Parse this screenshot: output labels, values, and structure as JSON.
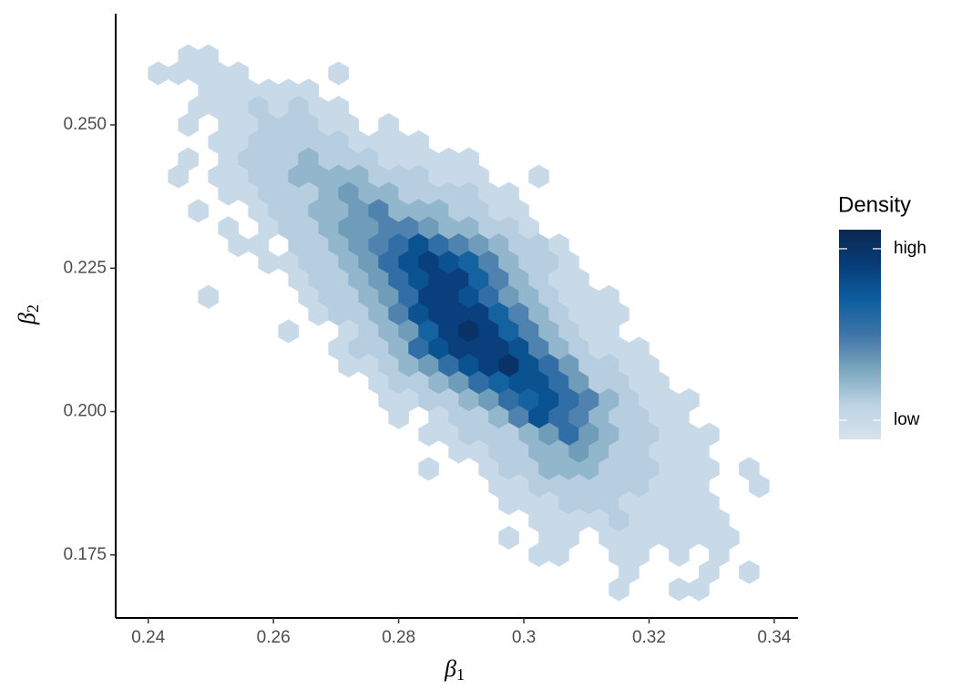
{
  "chart_data": {
    "type": "hexbin",
    "xlabel": "β",
    "xlabel_sub": "1",
    "ylabel": "β",
    "ylabel_sub": "2",
    "xlim": [
      0.2348,
      0.3438
    ],
    "ylim": [
      0.164,
      0.2694
    ],
    "xticks": [
      0.24,
      0.26,
      0.28,
      0.3,
      0.32,
      0.34
    ],
    "yticks": [
      {
        "value": 0.175,
        "label": "0.175"
      },
      {
        "value": 0.2,
        "label": "0.200"
      },
      {
        "value": 0.225,
        "label": "0.225"
      },
      {
        "value": 0.25,
        "label": "0.250"
      }
    ],
    "hex_width": 0.0032,
    "legend_title": "Density",
    "clim": [
      0,
      11
    ],
    "cticks": [
      {
        "value": 10,
        "label": "high"
      },
      {
        "value": 1,
        "label": "low"
      }
    ],
    "colors": [
      "#d6e3ed",
      "#bcd2e3",
      "#7aa6bd",
      "#3f74a8",
      "#0c5ea0",
      "#083c78",
      "#0a2850"
    ],
    "rows": [
      {
        "y": 0.262,
        "x": [
          0.2464,
          0.2496
        ],
        "values": [
          1,
          1
        ]
      },
      {
        "y": 0.259,
        "x": [
          0.2416,
          0.2448,
          0.248,
          0.2512,
          0.2544,
          0.2704
        ],
        "values": [
          1,
          1,
          1,
          1,
          1,
          1
        ]
      },
      {
        "y": 0.256,
        "x": [
          0.2496,
          0.2528,
          0.256,
          0.2592,
          0.2624,
          0.2656
        ],
        "values": [
          1,
          1,
          1,
          1,
          1,
          1
        ]
      },
      {
        "y": 0.253,
        "x": [
          0.248,
          0.2512,
          0.2544,
          0.2576,
          0.2608,
          0.264,
          0.2672,
          0.2704
        ],
        "values": [
          1,
          1,
          1,
          2,
          1,
          2,
          1,
          1
        ]
      },
      {
        "y": 0.25,
        "x": [
          0.2464,
          0.2528,
          0.256,
          0.2592,
          0.2624,
          0.2656,
          0.2688,
          0.272,
          0.2784
        ],
        "values": [
          1,
          1,
          1,
          2,
          2,
          2,
          1,
          1,
          1
        ]
      },
      {
        "y": 0.247,
        "x": [
          0.2512,
          0.2544,
          0.2576,
          0.2608,
          0.264,
          0.2672,
          0.2704,
          0.2736,
          0.2768,
          0.28,
          0.2832
        ],
        "values": [
          1,
          1,
          2,
          2,
          2,
          2,
          2,
          1,
          1,
          1,
          1
        ]
      },
      {
        "y": 0.244,
        "x": [
          0.2464,
          0.2528,
          0.256,
          0.2592,
          0.2624,
          0.2656,
          0.2688,
          0.272,
          0.2752,
          0.2784,
          0.2816,
          0.2848,
          0.288,
          0.2912
        ],
        "values": [
          1,
          1,
          2,
          2,
          2,
          3,
          2,
          2,
          2,
          1,
          1,
          1,
          1,
          1
        ]
      },
      {
        "y": 0.241,
        "x": [
          0.2448,
          0.2512,
          0.2544,
          0.2576,
          0.2608,
          0.264,
          0.2672,
          0.2704,
          0.2736,
          0.2768,
          0.28,
          0.2832,
          0.2864,
          0.2896,
          0.2928,
          0.3024
        ],
        "values": [
          1,
          1,
          1,
          2,
          2,
          3,
          3,
          3,
          3,
          2,
          2,
          2,
          1,
          1,
          1,
          1
        ]
      },
      {
        "y": 0.238,
        "x": [
          0.2528,
          0.256,
          0.2592,
          0.2624,
          0.2656,
          0.2688,
          0.272,
          0.2752,
          0.2784,
          0.2816,
          0.2848,
          0.288,
          0.2912,
          0.2944,
          0.2976
        ],
        "values": [
          1,
          1,
          2,
          2,
          2,
          3,
          4,
          3,
          3,
          2,
          2,
          2,
          2,
          1,
          1
        ]
      },
      {
        "y": 0.235,
        "x": [
          0.248,
          0.2576,
          0.2608,
          0.264,
          0.2672,
          0.2704,
          0.2736,
          0.2768,
          0.28,
          0.2832,
          0.2864,
          0.2896,
          0.2928,
          0.296,
          0.2992
        ],
        "values": [
          1,
          1,
          2,
          2,
          3,
          3,
          4,
          5,
          3,
          3,
          3,
          2,
          2,
          1,
          1
        ]
      },
      {
        "y": 0.232,
        "x": [
          0.2528,
          0.2592,
          0.2624,
          0.2656,
          0.2688,
          0.272,
          0.2752,
          0.2784,
          0.2816,
          0.2848,
          0.288,
          0.2912,
          0.2944,
          0.2976,
          0.3008
        ],
        "values": [
          1,
          1,
          2,
          2,
          3,
          4,
          4,
          5,
          5,
          4,
          3,
          3,
          2,
          2,
          1
        ]
      },
      {
        "y": 0.229,
        "x": [
          0.2544,
          0.2576,
          0.264,
          0.2672,
          0.2704,
          0.2736,
          0.2768,
          0.28,
          0.2832,
          0.2864,
          0.2896,
          0.2928,
          0.296,
          0.2992,
          0.3024,
          0.3056
        ],
        "values": [
          1,
          1,
          2,
          2,
          3,
          4,
          5,
          6,
          8,
          6,
          5,
          4,
          3,
          2,
          2,
          1
        ]
      },
      {
        "y": 0.226,
        "x": [
          0.2592,
          0.2624,
          0.2656,
          0.2688,
          0.272,
          0.2752,
          0.2784,
          0.2816,
          0.2848,
          0.288,
          0.2912,
          0.2944,
          0.2976,
          0.3008,
          0.304,
          0.3072
        ],
        "values": [
          1,
          1,
          2,
          2,
          3,
          4,
          6,
          8,
          9,
          8,
          7,
          5,
          3,
          2,
          2,
          1
        ]
      },
      {
        "y": 0.223,
        "x": [
          0.264,
          0.2672,
          0.2704,
          0.2736,
          0.2768,
          0.28,
          0.2832,
          0.2864,
          0.2896,
          0.2928,
          0.296,
          0.2992,
          0.3024,
          0.3056,
          0.3088
        ],
        "values": [
          1,
          2,
          2,
          3,
          4,
          6,
          8,
          9,
          9,
          7,
          5,
          3,
          2,
          1,
          1
        ]
      },
      {
        "y": 0.22,
        "x": [
          0.2496,
          0.2656,
          0.2688,
          0.272,
          0.2752,
          0.2784,
          0.2816,
          0.2848,
          0.288,
          0.2912,
          0.2944,
          0.2976,
          0.3008,
          0.304,
          0.3072,
          0.3104,
          0.3136
        ],
        "values": [
          1,
          1,
          2,
          2,
          3,
          4,
          6,
          9,
          9,
          8,
          6,
          4,
          3,
          2,
          1,
          1,
          1
        ]
      },
      {
        "y": 0.217,
        "x": [
          0.2672,
          0.2704,
          0.2736,
          0.2768,
          0.28,
          0.2832,
          0.2864,
          0.2896,
          0.2928,
          0.296,
          0.2992,
          0.3024,
          0.3056,
          0.3088,
          0.312,
          0.3152
        ],
        "values": [
          1,
          2,
          2,
          3,
          5,
          8,
          9,
          9,
          9,
          7,
          5,
          3,
          2,
          1,
          1,
          1
        ]
      },
      {
        "y": 0.214,
        "x": [
          0.2624,
          0.272,
          0.2752,
          0.2784,
          0.2816,
          0.2848,
          0.288,
          0.2912,
          0.2944,
          0.2976,
          0.3008,
          0.304,
          0.3072,
          0.3104,
          0.3136
        ],
        "values": [
          1,
          1,
          2,
          3,
          4,
          7,
          9,
          10,
          9,
          7,
          5,
          3,
          2,
          1,
          1
        ]
      },
      {
        "y": 0.211,
        "x": [
          0.2704,
          0.2736,
          0.2768,
          0.28,
          0.2832,
          0.2864,
          0.2896,
          0.2928,
          0.296,
          0.2992,
          0.3024,
          0.3056,
          0.3088,
          0.312,
          0.3152,
          0.3184
        ],
        "values": [
          1,
          2,
          2,
          3,
          6,
          8,
          9,
          9,
          9,
          8,
          5,
          3,
          2,
          1,
          1,
          1
        ]
      },
      {
        "y": 0.208,
        "x": [
          0.272,
          0.2752,
          0.2784,
          0.2816,
          0.2848,
          0.288,
          0.2912,
          0.2944,
          0.2976,
          0.3008,
          0.304,
          0.3072,
          0.3104,
          0.3136,
          0.3168,
          0.32
        ],
        "values": [
          1,
          1,
          2,
          3,
          4,
          6,
          8,
          9,
          10,
          8,
          6,
          4,
          2,
          2,
          1,
          1
        ]
      },
      {
        "y": 0.205,
        "x": [
          0.2768,
          0.28,
          0.2832,
          0.2864,
          0.2896,
          0.2928,
          0.296,
          0.2992,
          0.3024,
          0.3056,
          0.3088,
          0.312,
          0.3152,
          0.3184,
          0.3216
        ],
        "values": [
          1,
          2,
          2,
          3,
          4,
          6,
          7,
          8,
          8,
          6,
          4,
          2,
          2,
          1,
          1
        ]
      },
      {
        "y": 0.202,
        "x": [
          0.2784,
          0.2816,
          0.2848,
          0.288,
          0.2912,
          0.2944,
          0.2976,
          0.3008,
          0.304,
          0.3072,
          0.3104,
          0.3136,
          0.3168,
          0.32,
          0.3232,
          0.3264
        ],
        "values": [
          1,
          1,
          2,
          2,
          3,
          4,
          6,
          7,
          8,
          6,
          5,
          3,
          2,
          1,
          1,
          1
        ]
      },
      {
        "y": 0.199,
        "x": [
          0.28,
          0.2864,
          0.2896,
          0.2928,
          0.296,
          0.2992,
          0.3024,
          0.3056,
          0.3088,
          0.312,
          0.3152,
          0.3184,
          0.3216,
          0.3248
        ],
        "values": [
          1,
          1,
          2,
          2,
          3,
          5,
          8,
          6,
          5,
          3,
          2,
          2,
          1,
          1
        ]
      },
      {
        "y": 0.196,
        "x": [
          0.2848,
          0.288,
          0.2912,
          0.2944,
          0.2976,
          0.3008,
          0.304,
          0.3072,
          0.3104,
          0.3136,
          0.3168,
          0.32,
          0.3232,
          0.3264,
          0.3296
        ],
        "values": [
          1,
          1,
          2,
          2,
          2,
          3,
          4,
          6,
          4,
          3,
          2,
          2,
          1,
          1,
          1
        ]
      },
      {
        "y": 0.193,
        "x": [
          0.2896,
          0.2928,
          0.296,
          0.2992,
          0.3024,
          0.3056,
          0.3088,
          0.312,
          0.3152,
          0.3184,
          0.3216,
          0.3248,
          0.328
        ],
        "values": [
          1,
          1,
          2,
          2,
          3,
          3,
          4,
          3,
          2,
          2,
          1,
          1,
          1
        ]
      },
      {
        "y": 0.19,
        "x": [
          0.2848,
          0.2944,
          0.2976,
          0.3008,
          0.304,
          0.3072,
          0.3104,
          0.3136,
          0.3168,
          0.32,
          0.3232,
          0.3264,
          0.3296,
          0.336
        ],
        "values": [
          1,
          1,
          2,
          2,
          3,
          3,
          3,
          2,
          2,
          2,
          1,
          1,
          1,
          1
        ]
      },
      {
        "y": 0.187,
        "x": [
          0.296,
          0.2992,
          0.3024,
          0.3056,
          0.3088,
          0.312,
          0.3152,
          0.3184,
          0.3216,
          0.3248,
          0.328,
          0.3376
        ],
        "values": [
          1,
          1,
          2,
          2,
          2,
          2,
          2,
          2,
          1,
          1,
          1,
          1
        ]
      },
      {
        "y": 0.184,
        "x": [
          0.2976,
          0.3008,
          0.304,
          0.3072,
          0.3104,
          0.3136,
          0.3168,
          0.32,
          0.3232,
          0.3264,
          0.3296
        ],
        "values": [
          1,
          1,
          1,
          2,
          2,
          2,
          1,
          1,
          1,
          1,
          1
        ]
      },
      {
        "y": 0.181,
        "x": [
          0.3024,
          0.3056,
          0.3088,
          0.312,
          0.3152,
          0.3184,
          0.3216,
          0.3248,
          0.328,
          0.3312
        ],
        "values": [
          1,
          1,
          1,
          1,
          2,
          1,
          1,
          1,
          1,
          1
        ]
      },
      {
        "y": 0.178,
        "x": [
          0.2976,
          0.304,
          0.3072,
          0.3136,
          0.3168,
          0.32,
          0.3232,
          0.3264,
          0.3296,
          0.3328
        ],
        "values": [
          1,
          1,
          1,
          1,
          1,
          1,
          1,
          1,
          1,
          1
        ]
      },
      {
        "y": 0.175,
        "x": [
          0.3024,
          0.3056,
          0.3152,
          0.3184,
          0.3248,
          0.3312
        ],
        "values": [
          1,
          1,
          1,
          1,
          1,
          1
        ]
      },
      {
        "y": 0.172,
        "x": [
          0.3168,
          0.3296,
          0.336
        ],
        "values": [
          1,
          1,
          1
        ]
      },
      {
        "y": 0.169,
        "x": [
          0.3152,
          0.3248,
          0.328
        ],
        "values": [
          1,
          1,
          1
        ]
      }
    ]
  }
}
